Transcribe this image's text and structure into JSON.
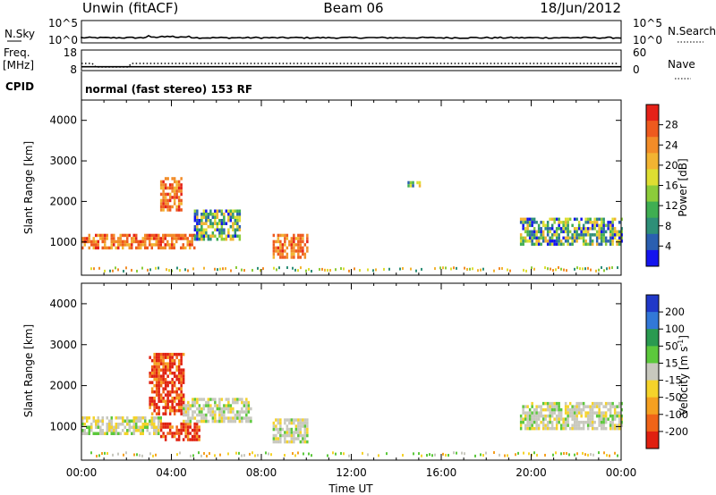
{
  "header": {
    "station": "Unwin (fitACF)",
    "beam": "Beam 06",
    "date": "18/Jun/2012"
  },
  "noise_panel": {
    "left_label": "N.Sky",
    "right_label": "N.Search",
    "left_ticks": [
      "10^5",
      "10^0"
    ],
    "right_ticks": [
      "10^5",
      "10^0"
    ]
  },
  "freq_panel": {
    "left_label_top": "Freq.",
    "left_label_unit": "[MHz]",
    "left_ticks": [
      "18",
      "8"
    ],
    "right_label": "Nave",
    "right_ticks": [
      "60",
      "0"
    ],
    "freq_level_mhz": 11.5,
    "nave_level": 10
  },
  "cpid": {
    "label": "CPID",
    "text": "normal (fast stereo) 153 RF"
  },
  "chart_data": [
    {
      "type": "heatmap",
      "name": "power",
      "ylabel": "Slant Range [km]",
      "ylim": [
        180,
        4500
      ],
      "y_ticks": [
        "1000",
        "2000",
        "3000",
        "4000"
      ],
      "x_range_hours": [
        0,
        24
      ],
      "colorbar": {
        "label": "Power [dB]",
        "ticks": [
          "4",
          "8",
          "12",
          "16",
          "20",
          "24",
          "28"
        ],
        "colors": [
          "#1414ee",
          "#2a5fb0",
          "#2e8f78",
          "#3fae52",
          "#8ccc3a",
          "#dede32",
          "#f2b432",
          "#f28c28",
          "#ee5a1e",
          "#e52218"
        ]
      },
      "echo_regions": [
        {
          "t_start": 0.0,
          "t_end": 5.0,
          "range_from": 850,
          "range_to": 1200,
          "level": "high"
        },
        {
          "t_start": 5.0,
          "t_end": 7.0,
          "range_from": 1100,
          "range_to": 1800,
          "level": "mid"
        },
        {
          "t_start": 3.5,
          "t_end": 4.4,
          "range_from": 1800,
          "range_to": 2600,
          "level": "high"
        },
        {
          "t_start": 8.5,
          "t_end": 10.0,
          "range_from": 600,
          "range_to": 1200,
          "level": "high"
        },
        {
          "t_start": 14.5,
          "t_end": 15.0,
          "range_from": 2350,
          "range_to": 2500,
          "level": "mid"
        },
        {
          "t_start": 19.5,
          "t_end": 24.0,
          "range_from": 950,
          "range_to": 1600,
          "level": "mid"
        }
      ]
    },
    {
      "type": "heatmap",
      "name": "velocity",
      "ylabel": "Slant Range [km]",
      "ylim": [
        180,
        4500
      ],
      "y_ticks": [
        "1000",
        "2000",
        "3000",
        "4000"
      ],
      "x_range_hours": [
        0,
        24
      ],
      "xlabel": "Time UT",
      "x_ticks": [
        "00:00",
        "04:00",
        "08:00",
        "12:00",
        "16:00",
        "20:00",
        "00:00"
      ],
      "colorbar": {
        "label": "Velocity [m s-1]",
        "label_main": "Velocity [m s",
        "label_sup": "-1",
        "label_end": "]",
        "ticks": [
          "200",
          "100",
          "50",
          "15",
          "-15",
          "-50",
          "-100",
          "-200"
        ],
        "colors": [
          "#2038c8",
          "#3278d8",
          "#2a9a50",
          "#5cc83c",
          "#c8c8be",
          "#f5d32a",
          "#f5a020",
          "#f06418",
          "#e02010"
        ]
      },
      "echo_regions": [
        {
          "t_start": 0.0,
          "t_end": 3.5,
          "range_from": 850,
          "range_to": 1250,
          "velocity": "low"
        },
        {
          "t_start": 3.5,
          "t_end": 5.2,
          "range_from": 650,
          "range_to": 1100,
          "velocity": "-200"
        },
        {
          "t_start": 3.0,
          "t_end": 4.5,
          "range_from": 1300,
          "range_to": 2800,
          "velocity": "-200"
        },
        {
          "t_start": 4.5,
          "t_end": 7.5,
          "range_from": 1100,
          "range_to": 1700,
          "velocity": "low"
        },
        {
          "t_start": 8.5,
          "t_end": 10.0,
          "range_from": 600,
          "range_to": 1200,
          "velocity": "low"
        },
        {
          "t_start": 19.5,
          "t_end": 24.0,
          "range_from": 950,
          "range_to": 1600,
          "velocity": "low"
        }
      ]
    }
  ]
}
